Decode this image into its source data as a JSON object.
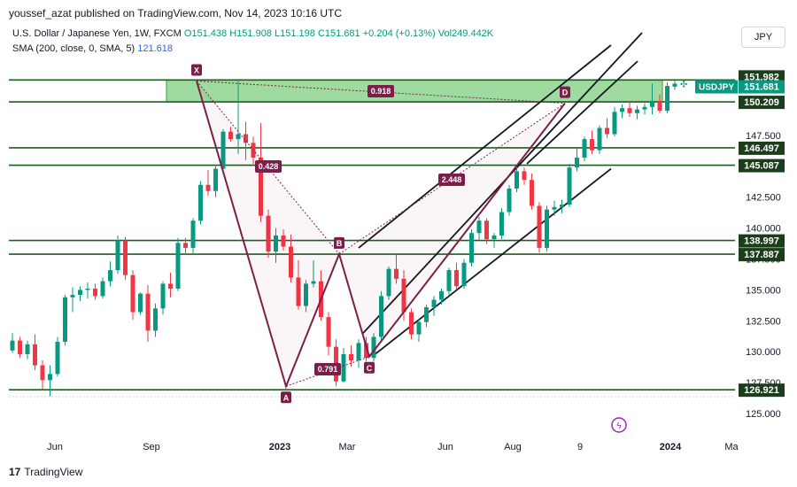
{
  "header": {
    "publisher": "youssef_azat published on TradingView.com, Nov 14, 2023 10:16 UTC"
  },
  "legend": {
    "symbol": "U.S. Dollar / Japanese Yen, 1W, FXCM",
    "open": "O151.438",
    "high": "H151.908",
    "low": "L151.198",
    "close": "C151.681",
    "change": "+0.204 (+0.13%)",
    "volume": "Vol249.442K",
    "sma_label": "SMA (200, close, 0, SMA, 5)",
    "sma_value": "121.618"
  },
  "currency_button": "JPY",
  "footer": {
    "brand": "TradingView"
  },
  "colors": {
    "up": "#089981",
    "down": "#f23645",
    "pattern": "#7b1f4a",
    "level": "#1b5e20",
    "zone": "#7fcf7f"
  },
  "chart_data": {
    "type": "candlestick",
    "y_ticks": [
      125.0,
      127.5,
      130.0,
      132.5,
      135.0,
      137.5,
      140.0,
      142.5,
      145.0,
      147.5,
      150.0
    ],
    "x_ticks": [
      "Jun",
      "Sep",
      "2023",
      "Mar",
      "Jun",
      "Aug",
      "9",
      "2024",
      "Ma"
    ],
    "symbol_tag": "USDJPY",
    "last_price": 151.681,
    "levels": [
      151.982,
      150.209,
      146.497,
      145.087,
      138.997,
      137.887,
      126.921
    ],
    "level_labels": [
      "151.982",
      "150.209",
      "146.497",
      "145.087",
      "138.997",
      "137.887",
      "126.921"
    ],
    "last_price_label": "151.681",
    "zone": {
      "top": 151.982,
      "bottom": 150.209
    },
    "harmonic_pattern": {
      "points": [
        {
          "label": "X",
          "price": 151.9
        },
        {
          "label": "A",
          "price": 127.2
        },
        {
          "label": "B",
          "price": 137.9
        },
        {
          "label": "C",
          "price": 129.6
        },
        {
          "label": "D",
          "price": 150.1
        }
      ],
      "ratios": [
        "0.428",
        "0.791",
        "2.448",
        "0.918"
      ]
    },
    "candles": [
      [
        130.1,
        131.5,
        129.9,
        130.9
      ],
      [
        130.9,
        131.2,
        129.5,
        129.8
      ],
      [
        129.8,
        130.9,
        129.4,
        130.6
      ],
      [
        130.6,
        131.4,
        128.5,
        128.9
      ],
      [
        128.9,
        129.3,
        126.9,
        127.7
      ],
      [
        127.7,
        128.9,
        126.4,
        128.2
      ],
      [
        128.2,
        131.2,
        128.0,
        130.8
      ],
      [
        130.8,
        134.6,
        130.5,
        134.4
      ],
      [
        134.4,
        135.2,
        133.2,
        134.6
      ],
      [
        134.6,
        135.3,
        134.1,
        135.0
      ],
      [
        135.0,
        135.6,
        134.3,
        135.1
      ],
      [
        135.1,
        135.5,
        134.2,
        134.5
      ],
      [
        134.5,
        136.0,
        134.3,
        135.7
      ],
      [
        135.7,
        137.3,
        135.3,
        136.6
      ],
      [
        136.6,
        139.4,
        136.3,
        139.0
      ],
      [
        139.0,
        139.3,
        135.8,
        136.2
      ],
      [
        136.2,
        136.6,
        132.6,
        133.2
      ],
      [
        133.2,
        134.8,
        133.0,
        134.7
      ],
      [
        134.7,
        135.4,
        130.8,
        131.7
      ],
      [
        131.7,
        133.9,
        131.2,
        133.5
      ],
      [
        133.5,
        135.7,
        133.0,
        135.5
      ],
      [
        135.5,
        136.4,
        134.4,
        135.1
      ],
      [
        135.1,
        139.2,
        134.9,
        138.8
      ],
      [
        138.8,
        139.2,
        137.8,
        138.4
      ],
      [
        138.4,
        140.8,
        137.8,
        140.6
      ],
      [
        140.6,
        143.8,
        140.3,
        143.5
      ],
      [
        143.5,
        144.7,
        142.6,
        143.0
      ],
      [
        143.0,
        145.0,
        142.5,
        144.8
      ],
      [
        144.8,
        148.0,
        144.6,
        147.8
      ],
      [
        147.8,
        148.2,
        147.0,
        147.2
      ],
      [
        147.2,
        151.9,
        146.0,
        147.6
      ],
      [
        147.6,
        148.6,
        145.5,
        146.9
      ],
      [
        146.9,
        147.4,
        145.2,
        145.7
      ],
      [
        145.7,
        148.5,
        140.5,
        141.0
      ],
      [
        141.0,
        141.5,
        137.6,
        138.1
      ],
      [
        138.1,
        140.0,
        137.2,
        139.4
      ],
      [
        139.4,
        139.9,
        138.2,
        138.5
      ],
      [
        138.5,
        139.5,
        135.6,
        136.0
      ],
      [
        136.0,
        137.4,
        133.4,
        133.7
      ],
      [
        133.7,
        135.8,
        133.2,
        135.5
      ],
      [
        135.5,
        137.4,
        135.2,
        135.7
      ],
      [
        135.7,
        136.6,
        132.5,
        132.8
      ],
      [
        132.8,
        133.2,
        129.7,
        130.4
      ],
      [
        130.4,
        131.0,
        127.2,
        127.6
      ],
      [
        127.6,
        130.3,
        127.5,
        129.8
      ],
      [
        129.8,
        130.5,
        128.8,
        129.3
      ],
      [
        129.3,
        131.0,
        128.7,
        130.7
      ],
      [
        130.7,
        131.2,
        129.2,
        129.5
      ],
      [
        129.5,
        131.5,
        129.2,
        131.2
      ],
      [
        131.2,
        134.9,
        130.9,
        134.5
      ],
      [
        134.5,
        136.9,
        134.2,
        136.7
      ],
      [
        136.7,
        137.9,
        135.5,
        135.9
      ],
      [
        135.9,
        136.6,
        132.5,
        133.2
      ],
      [
        133.2,
        133.5,
        131.0,
        131.4
      ],
      [
        131.4,
        132.6,
        130.8,
        132.4
      ],
      [
        132.4,
        133.8,
        132.0,
        133.6
      ],
      [
        133.6,
        134.5,
        132.9,
        134.2
      ],
      [
        134.2,
        135.1,
        133.8,
        134.9
      ],
      [
        134.9,
        136.8,
        134.5,
        136.6
      ],
      [
        136.6,
        137.2,
        135.0,
        135.3
      ],
      [
        135.3,
        137.5,
        135.1,
        137.2
      ],
      [
        137.2,
        139.9,
        136.9,
        139.6
      ],
      [
        139.6,
        140.9,
        139.0,
        140.6
      ],
      [
        140.6,
        140.8,
        138.7,
        139.1
      ],
      [
        139.1,
        139.6,
        138.4,
        139.4
      ],
      [
        139.4,
        141.6,
        139.1,
        141.3
      ],
      [
        141.3,
        143.5,
        141.0,
        143.2
      ],
      [
        143.2,
        145.0,
        142.9,
        144.6
      ],
      [
        144.6,
        144.9,
        143.5,
        143.9
      ],
      [
        143.9,
        144.4,
        141.5,
        141.8
      ],
      [
        141.8,
        142.1,
        138.0,
        138.4
      ],
      [
        138.4,
        141.8,
        138.1,
        141.5
      ],
      [
        141.5,
        142.2,
        141.0,
        141.7
      ],
      [
        141.7,
        142.3,
        141.2,
        141.9
      ],
      [
        141.9,
        145.2,
        141.7,
        144.9
      ],
      [
        144.9,
        146.4,
        144.6,
        145.7
      ],
      [
        145.7,
        147.4,
        145.4,
        147.2
      ],
      [
        147.2,
        147.9,
        146.0,
        146.3
      ],
      [
        146.3,
        148.3,
        146.0,
        148.1
      ],
      [
        148.1,
        148.9,
        147.3,
        147.6
      ],
      [
        147.6,
        149.8,
        147.4,
        149.4
      ],
      [
        149.4,
        150.0,
        148.9,
        149.7
      ],
      [
        149.7,
        150.2,
        149.0,
        149.3
      ],
      [
        149.3,
        149.9,
        148.8,
        149.6
      ],
      [
        149.6,
        150.1,
        149.2,
        149.8
      ],
      [
        149.8,
        151.7,
        149.2,
        150.3
      ],
      [
        150.3,
        150.8,
        149.3,
        149.5
      ],
      [
        149.5,
        151.8,
        149.3,
        151.5
      ],
      [
        151.44,
        151.91,
        151.2,
        151.68
      ]
    ]
  }
}
